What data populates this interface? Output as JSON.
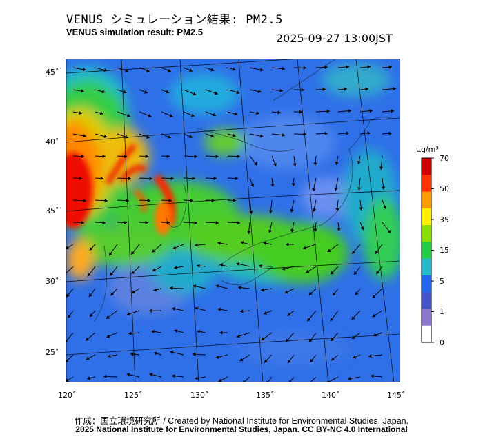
{
  "header": {
    "title_jp": "VENUS シミュレーション結果: PM2.5",
    "title_en": "VENUS simulation result: PM2.5",
    "timestamp": "2025-09-27 13:00JST"
  },
  "map": {
    "lat_labels": [
      "45˚",
      "40˚",
      "35˚",
      "30˚",
      "25˚"
    ],
    "lon_labels": [
      "120˚",
      "125˚",
      "130˚",
      "135˚",
      "140˚",
      "145˚"
    ],
    "lat_values": [
      45,
      40,
      35,
      30,
      25
    ],
    "lon_values": [
      120,
      125,
      130,
      135,
      140,
      145
    ]
  },
  "colorbar": {
    "unit": "μg/m³",
    "tick_labels": [
      "70",
      "50",
      "35",
      "15",
      "5",
      "1",
      "0"
    ],
    "colors": [
      "#cc0000",
      "#ff3300",
      "#ff9900",
      "#ffee00",
      "#88dd00",
      "#22cc44",
      "#22bbcc",
      "#2266ee",
      "#4455cc",
      "#8877cc",
      "#ffffff"
    ]
  },
  "footer": {
    "credit_line1": "作成：国立環境研究所 / Created by National Institute for Environmental Studies, Japan.",
    "credit_line2": "2025 National Institute for Environmental Studies, Japan. CC BY-NC 4.0 International"
  }
}
